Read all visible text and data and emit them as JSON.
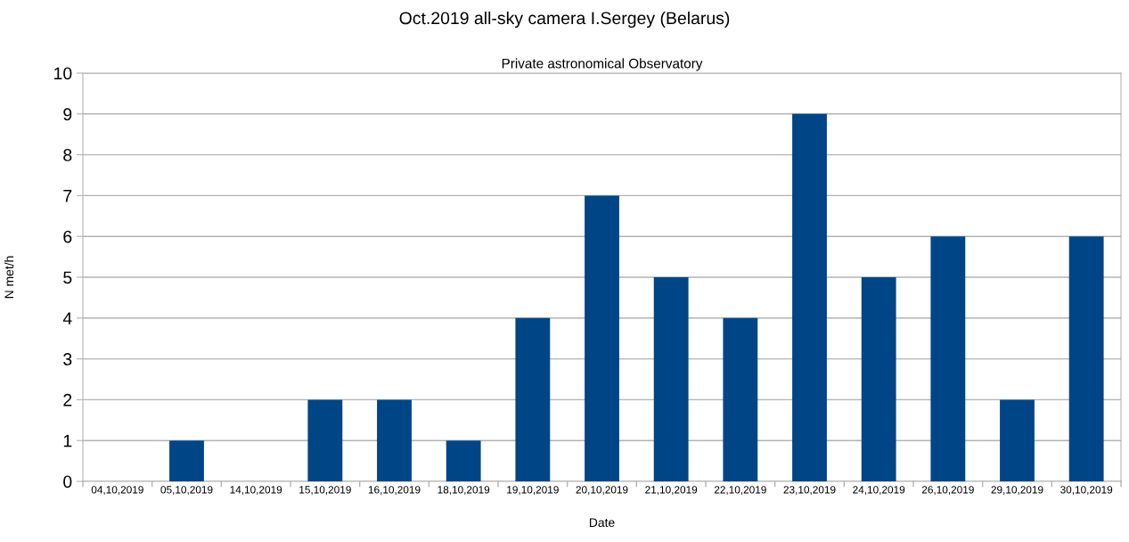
{
  "chart_data": {
    "type": "bar",
    "title": "Oct.2019 all-sky camera I.Sergey (Belarus)",
    "subtitle": "Private astronomical Observatory",
    "xlabel": "Date",
    "ylabel": "N met/h",
    "categories": [
      "04,10,2019",
      "05,10,2019",
      "14,10,2019",
      "15,10,2019",
      "16,10,2019",
      "18,10,2019",
      "19,10,2019",
      "20,10,2019",
      "21,10,2019",
      "22,10,2019",
      "23,10,2019",
      "24,10,2019",
      "26,10,2019",
      "29,10,2019",
      "30,10,2019"
    ],
    "values": [
      0,
      1,
      0,
      2,
      2,
      1,
      4,
      7,
      5,
      4,
      9,
      5,
      6,
      2,
      6
    ],
    "color": "#004586",
    "ylim": [
      0,
      10
    ],
    "yticks": [
      0,
      1,
      2,
      3,
      4,
      5,
      6,
      7,
      8,
      9,
      10
    ],
    "grid": "y",
    "legend": false
  }
}
